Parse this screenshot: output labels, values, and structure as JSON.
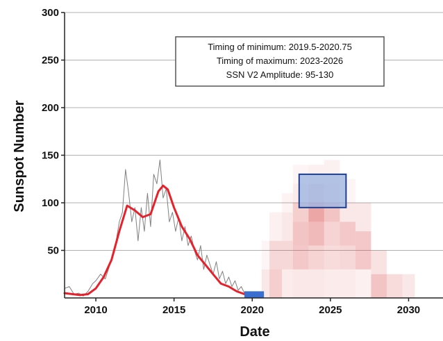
{
  "chart_data": {
    "type": "line",
    "xlabel": "Date",
    "ylabel": "Sunspot Number",
    "xlim": [
      2008,
      2032.2
    ],
    "ylim": [
      0,
      300
    ],
    "x_ticks": [
      2010,
      2015,
      2020,
      2025,
      2030
    ],
    "y_ticks": [
      50,
      100,
      150,
      200,
      250,
      300
    ],
    "grid": "horizontal",
    "annotation_lines": [
      "Timing of minimum: 2019.5-2020.75",
      "Timing of maximum: 2023-2026",
      "SSN V2 Amplitude: 95-130"
    ],
    "series": [
      {
        "style": "monthly-thin",
        "color": "#808080",
        "x": [
          2008.0,
          2008.3,
          2008.6,
          2008.9,
          2009.2,
          2009.5,
          2009.8,
          2010.0,
          2010.3,
          2010.6,
          2010.9,
          2011.1,
          2011.3,
          2011.5,
          2011.7,
          2011.9,
          2012.1,
          2012.3,
          2012.5,
          2012.7,
          2012.9,
          2013.1,
          2013.3,
          2013.5,
          2013.7,
          2013.9,
          2014.1,
          2014.3,
          2014.5,
          2014.7,
          2014.9,
          2015.1,
          2015.3,
          2015.5,
          2015.7,
          2015.9,
          2016.1,
          2016.3,
          2016.5,
          2016.7,
          2016.9,
          2017.1,
          2017.3,
          2017.5,
          2017.7,
          2017.9,
          2018.1,
          2018.3,
          2018.5,
          2018.7,
          2018.9,
          2019.1,
          2019.3,
          2019.5,
          2019.8
        ],
        "y": [
          10,
          12,
          4,
          5,
          2,
          7,
          15,
          18,
          25,
          20,
          35,
          48,
          60,
          80,
          90,
          135,
          110,
          80,
          95,
          60,
          95,
          70,
          110,
          75,
          130,
          120,
          145,
          105,
          115,
          80,
          90,
          70,
          85,
          60,
          75,
          55,
          65,
          50,
          40,
          55,
          30,
          45,
          35,
          25,
          38,
          20,
          28,
          15,
          22,
          12,
          18,
          8,
          12,
          5,
          3
        ]
      },
      {
        "style": "smoothed-thick",
        "color": "#e8202a",
        "x": [
          2008.0,
          2008.5,
          2009.0,
          2009.5,
          2010.0,
          2010.5,
          2011.0,
          2011.5,
          2012.0,
          2012.5,
          2013.0,
          2013.5,
          2014.0,
          2014.3,
          2014.6,
          2015.0,
          2015.5,
          2016.0,
          2016.5,
          2017.0,
          2017.5,
          2018.0,
          2018.5,
          2019.0,
          2019.5,
          2019.9
        ],
        "y": [
          5,
          4,
          3,
          4,
          10,
          22,
          40,
          70,
          97,
          92,
          85,
          88,
          112,
          118,
          114,
          95,
          75,
          62,
          45,
          35,
          25,
          15,
          12,
          7,
          4,
          3
        ]
      }
    ],
    "forecast": {
      "probability_cells": [
        {
          "x": [
            2020.6,
            2021.1
          ],
          "y": [
            0,
            30
          ],
          "opacity": 0.12
        },
        {
          "x": [
            2020.6,
            2021.1
          ],
          "y": [
            30,
            60
          ],
          "opacity": 0.05
        },
        {
          "x": [
            2021.1,
            2021.9
          ],
          "y": [
            0,
            30
          ],
          "opacity": 0.25
        },
        {
          "x": [
            2021.1,
            2021.9
          ],
          "y": [
            30,
            60
          ],
          "opacity": 0.2
        },
        {
          "x": [
            2021.1,
            2021.9
          ],
          "y": [
            60,
            90
          ],
          "opacity": 0.08
        },
        {
          "x": [
            2021.9,
            2022.6
          ],
          "y": [
            0,
            30
          ],
          "opacity": 0.1
        },
        {
          "x": [
            2021.9,
            2022.6
          ],
          "y": [
            30,
            60
          ],
          "opacity": 0.2
        },
        {
          "x": [
            2021.9,
            2022.6
          ],
          "y": [
            60,
            90
          ],
          "opacity": 0.12
        },
        {
          "x": [
            2021.9,
            2022.6
          ],
          "y": [
            90,
            110
          ],
          "opacity": 0.06
        },
        {
          "x": [
            2022.6,
            2023.6
          ],
          "y": [
            0,
            30
          ],
          "opacity": 0.12
        },
        {
          "x": [
            2022.6,
            2023.6
          ],
          "y": [
            30,
            55
          ],
          "opacity": 0.28
        },
        {
          "x": [
            2022.6,
            2023.6
          ],
          "y": [
            55,
            80
          ],
          "opacity": 0.3
        },
        {
          "x": [
            2022.6,
            2023.6
          ],
          "y": [
            80,
            100
          ],
          "opacity": 0.25
        },
        {
          "x": [
            2022.6,
            2023.6
          ],
          "y": [
            100,
            120
          ],
          "opacity": 0.1
        },
        {
          "x": [
            2022.6,
            2023.6
          ],
          "y": [
            120,
            140
          ],
          "opacity": 0.05
        },
        {
          "x": [
            2023.6,
            2024.6
          ],
          "y": [
            0,
            30
          ],
          "opacity": 0.12
        },
        {
          "x": [
            2023.6,
            2024.6
          ],
          "y": [
            30,
            55
          ],
          "opacity": 0.22
        },
        {
          "x": [
            2023.6,
            2024.6
          ],
          "y": [
            55,
            80
          ],
          "opacity": 0.35
        },
        {
          "x": [
            2023.6,
            2024.6
          ],
          "y": [
            80,
            100
          ],
          "opacity": 0.45
        },
        {
          "x": [
            2023.6,
            2024.6
          ],
          "y": [
            100,
            120
          ],
          "opacity": 0.2
        },
        {
          "x": [
            2023.6,
            2024.6
          ],
          "y": [
            120,
            140
          ],
          "opacity": 0.08
        },
        {
          "x": [
            2024.6,
            2025.6
          ],
          "y": [
            0,
            30
          ],
          "opacity": 0.1
        },
        {
          "x": [
            2024.6,
            2025.6
          ],
          "y": [
            30,
            55
          ],
          "opacity": 0.18
        },
        {
          "x": [
            2024.6,
            2025.6
          ],
          "y": [
            55,
            80
          ],
          "opacity": 0.22
        },
        {
          "x": [
            2024.6,
            2025.6
          ],
          "y": [
            80,
            100
          ],
          "opacity": 0.3
        },
        {
          "x": [
            2024.6,
            2025.6
          ],
          "y": [
            100,
            120
          ],
          "opacity": 0.12
        },
        {
          "x": [
            2024.6,
            2025.6
          ],
          "y": [
            120,
            145
          ],
          "opacity": 0.07
        },
        {
          "x": [
            2025.6,
            2026.6
          ],
          "y": [
            0,
            30
          ],
          "opacity": 0.1
        },
        {
          "x": [
            2025.6,
            2026.6
          ],
          "y": [
            30,
            55
          ],
          "opacity": 0.2
        },
        {
          "x": [
            2025.6,
            2026.6
          ],
          "y": [
            55,
            80
          ],
          "opacity": 0.28
        },
        {
          "x": [
            2025.6,
            2026.6
          ],
          "y": [
            80,
            100
          ],
          "opacity": 0.12
        },
        {
          "x": [
            2025.6,
            2026.6
          ],
          "y": [
            100,
            125
          ],
          "opacity": 0.05
        },
        {
          "x": [
            2026.6,
            2027.6
          ],
          "y": [
            0,
            30
          ],
          "opacity": 0.08
        },
        {
          "x": [
            2026.6,
            2027.6
          ],
          "y": [
            30,
            70
          ],
          "opacity": 0.28
        },
        {
          "x": [
            2026.6,
            2027.6
          ],
          "y": [
            70,
            100
          ],
          "opacity": 0.12
        },
        {
          "x": [
            2027.6,
            2028.6
          ],
          "y": [
            0,
            25
          ],
          "opacity": 0.3
        },
        {
          "x": [
            2027.6,
            2028.6
          ],
          "y": [
            25,
            50
          ],
          "opacity": 0.15
        },
        {
          "x": [
            2028.6,
            2029.6
          ],
          "y": [
            0,
            25
          ],
          "opacity": 0.18
        },
        {
          "x": [
            2029.6,
            2030.4
          ],
          "y": [
            0,
            25
          ],
          "opacity": 0.12
        }
      ],
      "cell_color": "#d63a3a",
      "minimum_window": {
        "x": [
          2019.5,
          2020.75
        ],
        "y": [
          0,
          7
        ],
        "color": "#3a6fd0"
      },
      "maximum_box": {
        "x": [
          2023,
          2026
        ],
        "y": [
          95,
          130
        ],
        "fill": "#9fb6e2",
        "stroke": "#1f3f8f"
      }
    }
  }
}
